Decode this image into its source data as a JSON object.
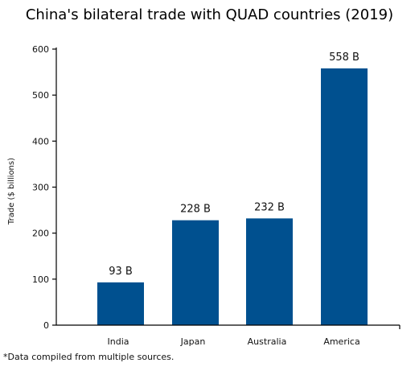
{
  "chart_data": {
    "type": "bar",
    "title": "China's bilateral trade with QUAD countries (2019)",
    "xlabel": "",
    "ylabel": "Trade ($ billions)",
    "categories": [
      "India",
      "Japan",
      "Australia",
      "America"
    ],
    "values": [
      93,
      228,
      232,
      558
    ],
    "data_labels": [
      "93 B",
      "228 B",
      "232 B",
      "558 B"
    ],
    "ylim": [
      0,
      600
    ],
    "yticks": [
      0,
      100,
      200,
      300,
      400,
      500,
      600
    ],
    "grid": false,
    "legend": "none",
    "bar_color": "#00508f",
    "footnote": "*Data compiled from multiple sources."
  }
}
